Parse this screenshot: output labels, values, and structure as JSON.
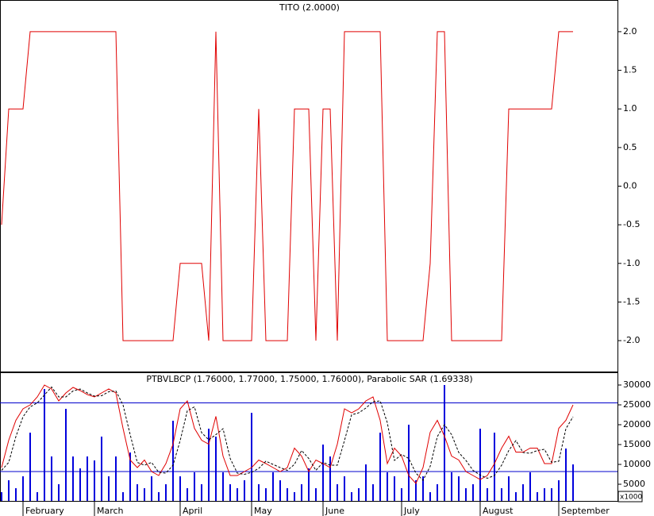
{
  "chart_data": [
    {
      "type": "line",
      "title": "TITO (2.0000)",
      "color": "#e00000",
      "ylim": [
        -2.4,
        2.4
      ],
      "yticks": [
        {
          "value": 2,
          "label": "2.0"
        },
        1.5,
        {
          "value": 1,
          "label": "1.0"
        },
        0.5,
        {
          "value": 0,
          "label": "0.0"
        },
        -0.5,
        {
          "value": -1,
          "label": "-1.0"
        },
        -1.5,
        {
          "value": -2,
          "label": "-2.0"
        }
      ],
      "values": [
        -0.5,
        1,
        1,
        1,
        2,
        2,
        2,
        2,
        2,
        2,
        2,
        2,
        2,
        2,
        2,
        2,
        2,
        -2,
        -2,
        -2,
        -2,
        -2,
        -2,
        -2,
        -2,
        -1,
        -1,
        -1,
        -1,
        -2,
        2,
        -2,
        -2,
        -2,
        -2,
        -2,
        1,
        -2,
        -2,
        -2,
        -2,
        1,
        1,
        1,
        -2,
        1,
        1,
        -2,
        2,
        2,
        2,
        2,
        2,
        2,
        -2,
        -2,
        -2,
        -2,
        -2,
        -2,
        -1,
        2,
        2,
        -2,
        -2,
        -2,
        -2,
        -2,
        -2,
        -2,
        -2,
        1,
        1,
        1,
        1,
        1,
        1,
        1,
        2,
        2,
        2
      ]
    },
    {
      "type": "combo",
      "title": "PTBVLBCP (1.76000, 1.77000, 1.75000, 1.76000), Parabolic SAR (1.69338)",
      "axis_note": "x1000",
      "ylim": [
        800,
        33000
      ],
      "yticks": [
        30000,
        25000,
        20000,
        15000,
        10000,
        5000
      ],
      "hlines": [
        25500,
        8200
      ],
      "hline_color": "#0000cc",
      "categories": [
        null,
        null,
        null,
        "February",
        null,
        null,
        null,
        null,
        null,
        null,
        null,
        null,
        null,
        "March",
        null,
        null,
        null,
        null,
        null,
        null,
        null,
        null,
        null,
        null,
        null,
        "April",
        null,
        null,
        null,
        null,
        null,
        null,
        null,
        null,
        null,
        "May",
        null,
        null,
        null,
        null,
        null,
        null,
        null,
        null,
        null,
        "June",
        null,
        null,
        null,
        null,
        null,
        null,
        null,
        null,
        null,
        null,
        "July",
        null,
        null,
        null,
        null,
        null,
        null,
        null,
        null,
        null,
        null,
        "August",
        null,
        null,
        null,
        null,
        null,
        null,
        null,
        null,
        null,
        null,
        "September",
        null,
        null
      ],
      "series": [
        {
          "kind": "bar",
          "color": "#0000dd",
          "values": [
            3000,
            6000,
            4000,
            7000,
            18000,
            3000,
            29000,
            12000,
            5000,
            24000,
            12000,
            9000,
            12000,
            11000,
            17000,
            7000,
            12000,
            3000,
            13000,
            5000,
            4000,
            7000,
            3000,
            5000,
            21000,
            7000,
            4000,
            8000,
            5000,
            19000,
            17000,
            8000,
            5000,
            4000,
            6000,
            23000,
            5000,
            4000,
            8000,
            6000,
            4000,
            3000,
            5000,
            9000,
            4000,
            15000,
            12000,
            5000,
            7000,
            3000,
            4000,
            10000,
            5000,
            18000,
            8000,
            7000,
            4000,
            20000,
            6000,
            7000,
            3000,
            5000,
            30000,
            8000,
            7000,
            4000,
            5000,
            19000,
            4000,
            18000,
            4000,
            7000,
            3000,
            5000,
            8000,
            3000,
            4000,
            4000,
            6000,
            14000,
            10000
          ]
        },
        {
          "kind": "line",
          "color": "#e00000",
          "values": [
            9200,
            16100,
            21100,
            24000,
            25000,
            27000,
            30000,
            29000,
            26000,
            28000,
            29400,
            28600,
            27600,
            27000,
            28000,
            29000,
            28000,
            19100,
            11100,
            9200,
            11100,
            8200,
            7200,
            10200,
            15100,
            24000,
            26000,
            19100,
            16100,
            15100,
            22100,
            12100,
            7200,
            7200,
            8200,
            9200,
            11100,
            10200,
            9200,
            8200,
            9200,
            14100,
            12100,
            8200,
            11100,
            10200,
            9200,
            15100,
            24000,
            23000,
            24000,
            26000,
            27000,
            21100,
            10200,
            14100,
            12100,
            7200,
            5200,
            9200,
            18100,
            21100,
            17100,
            12100,
            11100,
            8200,
            7200,
            6200,
            7200,
            10200,
            14100,
            17100,
            13100,
            13100,
            14100,
            14100,
            10200,
            10200,
            19100,
            21100,
            25000
          ]
        },
        {
          "kind": "line",
          "dash": true,
          "color": "#000000",
          "values": [
            8500,
            10500,
            17000,
            22000,
            24500,
            25500,
            27500,
            29500,
            27000,
            27000,
            28500,
            29000,
            28000,
            27200,
            27300,
            28300,
            28500,
            25000,
            17500,
            10500,
            9800,
            10500,
            8000,
            7800,
            9800,
            16000,
            23500,
            24500,
            18000,
            16200,
            17500,
            19000,
            11500,
            7800,
            7500,
            8000,
            9000,
            10800,
            10000,
            9200,
            8500,
            10000,
            13500,
            11500,
            8500,
            10500,
            9800,
            9800,
            16000,
            22500,
            23000,
            24200,
            25800,
            26000,
            20500,
            11000,
            12500,
            11500,
            7800,
            6000,
            9500,
            17000,
            20000,
            17500,
            13000,
            11000,
            8500,
            7300,
            6500,
            7200,
            9800,
            13500,
            16000,
            13000,
            12800,
            13500,
            13800,
            10500,
            10800,
            19000,
            22000
          ]
        }
      ]
    }
  ]
}
